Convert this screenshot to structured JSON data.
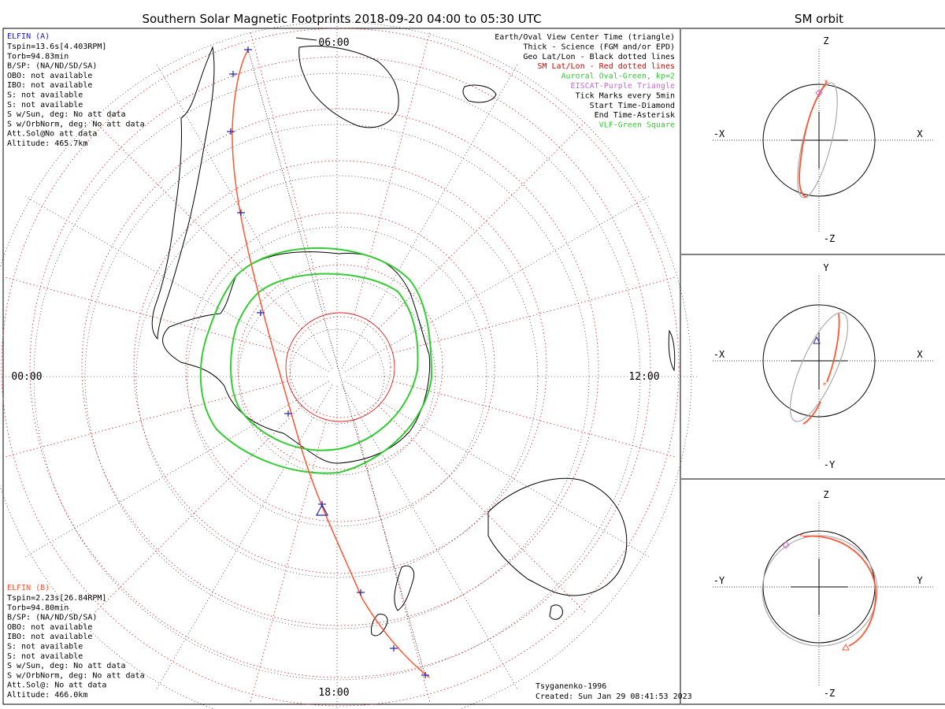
{
  "main_title": "Southern Solar Magnetic Footprints 2018-09-20 04:00 to 05:30 UTC",
  "side_title": "SM orbit",
  "map": {
    "mlt_labels": {
      "top": "06:00",
      "left": "00:00",
      "right": "12:00",
      "bottom": "18:00"
    }
  },
  "sat_a": {
    "name": "ELFIN (A)",
    "color": "#1a1acc",
    "lines": [
      "Tspin=13.6s[4.403RPM]",
      "Torb=94.83min",
      "B/SP: (NA/ND/SD/SA)",
      "OBO: not available",
      "IBO: not available",
      "S: not available",
      "S: not available",
      "S w/Sun, deg: No att data",
      "S w/OrbNorm, deg: No att data",
      "Att.Sol@No att data",
      "Altitude: 465.7km"
    ]
  },
  "sat_b": {
    "name": "ELFIN (B)",
    "color": "#ff5533",
    "lines": [
      "Tspin=2.23s[26.84RPM]",
      "Torb=94.80min",
      "B/SP: (NA/ND/SD/SA)",
      "OBO: not available",
      "IBO: not available",
      "S: not available",
      "S: not available",
      "S w/Sun, deg: No att data",
      "S w/OrbNorm, deg: No att data",
      "Att.Sol@: No att data",
      "Altitude: 466.0km"
    ]
  },
  "legend": [
    {
      "text": "Earth/Oval View Center Time (triangle)",
      "color": "#000000"
    },
    {
      "text": "Thick - Science (FGM and/or EPD)",
      "color": "#000000"
    },
    {
      "text": "Geo Lat/Lon - Black dotted lines",
      "color": "#000000"
    },
    {
      "text": "SM Lat/Lon - Red dotted lines",
      "color": "#dd0000"
    },
    {
      "text": "Auroral Oval-Green, kp=2",
      "color": "#33cc33"
    },
    {
      "text": "EISCAT-Purple Triangle",
      "color": "#cc66dd"
    },
    {
      "text": "Tick Marks every 5min",
      "color": "#000000"
    },
    {
      "text": "Start Time-Diamond",
      "color": "#000000"
    },
    {
      "text": "End Time-Asterisk",
      "color": "#000000"
    },
    {
      "text": "VLF-Green Square",
      "color": "#33cc33"
    }
  ],
  "footer": {
    "model": "Tsyganenko-1996",
    "created": "Created: Sun Jan 29 08:41:53 2023"
  },
  "orbit_panels": [
    {
      "h_axis": [
        "-X",
        "X"
      ],
      "v_axis": [
        "Z",
        "-Z"
      ]
    },
    {
      "h_axis": [
        "-X",
        "X"
      ],
      "v_axis": [
        "Y",
        "-Y"
      ]
    },
    {
      "h_axis": [
        "-Y",
        "Y"
      ],
      "v_axis": [
        "Z",
        "-Z"
      ]
    }
  ],
  "colors": {
    "sm_grid": "#dd2222",
    "oval": "#33cc33",
    "track": "#ff5533",
    "tick": "#2222aa",
    "orbit_gray": "#aaaaaa"
  }
}
